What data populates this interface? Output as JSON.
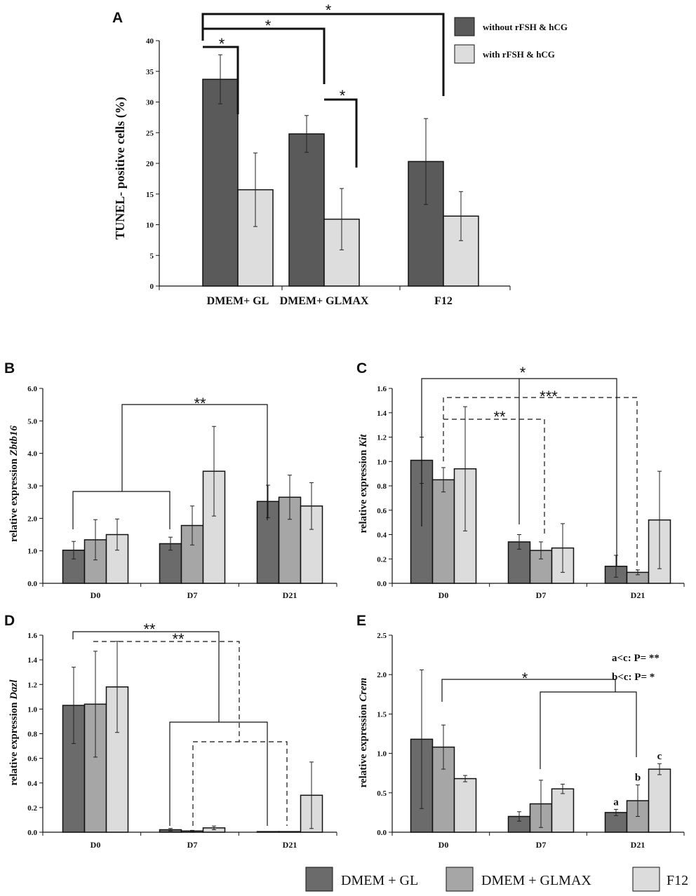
{
  "figure": {
    "legend_bottom": [
      {
        "label": "DMEM + GL",
        "color": "#6b6b6b"
      },
      {
        "label": "DMEM + GLMAX",
        "color": "#a6a6a6"
      },
      {
        "label": "F12",
        "color": "#dcdcdc"
      }
    ]
  },
  "chart_data": [
    {
      "panel": "A",
      "type": "bar",
      "ylabel": "TUNEL- positive cells (%)",
      "categories": [
        "DMEM+ GL",
        "DMEM+ GLMAX",
        "F12"
      ],
      "ylim": [
        0,
        40
      ],
      "yticks": [
        "0",
        "5",
        "10",
        "15",
        "20",
        "25",
        "30",
        "35",
        "40"
      ],
      "series": [
        {
          "name": "without rFSH & hCG",
          "color": "#5a5a5a",
          "values": [
            33.7,
            24.8,
            20.3
          ],
          "errors": [
            4.0,
            3.0,
            7.0
          ]
        },
        {
          "name": "with rFSH & hCG",
          "color": "#dddddd",
          "values": [
            15.7,
            10.9,
            11.4
          ],
          "errors": [
            6.0,
            5.0,
            4.0
          ]
        }
      ],
      "significance": [
        {
          "label": "*",
          "from": "DMEM+ GL/without",
          "to": "DMEM+ GL/with"
        },
        {
          "label": "*",
          "from": "DMEM+ GL/without",
          "to": "DMEM+ GLMAX/without"
        },
        {
          "label": "*",
          "from": "DMEM+ GLMAX/without",
          "to": "DMEM+ GLMAX/with"
        },
        {
          "label": "*",
          "from": "DMEM+ GL/without",
          "to": "F12/without"
        }
      ]
    },
    {
      "panel": "B",
      "type": "bar",
      "ylabel": "relative expression Zbtb16",
      "ylabel_plain": "relative expression ",
      "ylabel_italic": "Zbtb16",
      "categories": [
        "D0",
        "D7",
        "D21"
      ],
      "ylim": [
        0,
        6
      ],
      "yticks": [
        "0.0",
        "1.0",
        "2.0",
        "3.0",
        "4.0",
        "5.0",
        "6.0"
      ],
      "series": [
        {
          "name": "DMEM + GL",
          "values": [
            1.02,
            1.22,
            2.52
          ],
          "errors": [
            0.27,
            0.2,
            0.5
          ]
        },
        {
          "name": "DMEM + GLMAX",
          "values": [
            1.34,
            1.78,
            2.65
          ],
          "errors": [
            0.62,
            0.6,
            0.68
          ]
        },
        {
          "name": "F12",
          "values": [
            1.5,
            3.45,
            2.38
          ],
          "errors": [
            0.48,
            1.38,
            0.72
          ]
        }
      ],
      "significance": [
        {
          "label": "**"
        }
      ]
    },
    {
      "panel": "C",
      "type": "bar",
      "ylabel": "relative expression Kit",
      "ylabel_plain": "relative expression ",
      "ylabel_italic": "Kit",
      "categories": [
        "D0",
        "D7",
        "D21"
      ],
      "ylim": [
        0,
        1.6
      ],
      "yticks": [
        "0.0",
        "0.2",
        "0.4",
        "0.6",
        "0.8",
        "1.0",
        "1.2",
        "1.4",
        "1.6"
      ],
      "series": [
        {
          "name": "DMEM + GL",
          "values": [
            1.01,
            0.34,
            0.14
          ],
          "errors": [
            0.19,
            0.06,
            0.09
          ]
        },
        {
          "name": "DMEM + GLMAX",
          "values": [
            0.85,
            0.27,
            0.09
          ],
          "errors": [
            0.1,
            0.07,
            0.02
          ]
        },
        {
          "name": "F12",
          "values": [
            0.94,
            0.29,
            0.52
          ],
          "errors": [
            0.51,
            0.2,
            0.4
          ]
        }
      ],
      "significance": [
        {
          "label": "*"
        },
        {
          "label": "***"
        },
        {
          "label": "**"
        }
      ]
    },
    {
      "panel": "D",
      "type": "bar",
      "ylabel": "relative expression Dazl",
      "ylabel_plain": "relative expression ",
      "ylabel_italic": "Dazl",
      "categories": [
        "D0",
        "D7",
        "D21"
      ],
      "ylim": [
        0,
        1.6
      ],
      "yticks": [
        "0.0",
        "0.2",
        "0.4",
        "0.6",
        "0.8",
        "1.0",
        "1.2",
        "1.4",
        "1.6"
      ],
      "series": [
        {
          "name": "DMEM + GL",
          "values": [
            1.03,
            0.02,
            0.005
          ],
          "errors": [
            0.31,
            0.01,
            0.0
          ]
        },
        {
          "name": "DMEM + GLMAX",
          "values": [
            1.04,
            0.01,
            0.005
          ],
          "errors": [
            0.43,
            0.005,
            0.0
          ]
        },
        {
          "name": "F12",
          "values": [
            1.18,
            0.035,
            0.3
          ],
          "errors": [
            0.37,
            0.015,
            0.27
          ]
        }
      ],
      "significance": [
        {
          "label": "**"
        },
        {
          "label": "**"
        }
      ]
    },
    {
      "panel": "E",
      "type": "bar",
      "ylabel": "relative expression Crem",
      "ylabel_plain": "relative expression ",
      "ylabel_italic": "Crem",
      "categories": [
        "D0",
        "D7",
        "D21"
      ],
      "ylim": [
        0,
        2.5
      ],
      "yticks": [
        "0.0",
        "0.5",
        "1.0",
        "1.5",
        "2.0",
        "2.5"
      ],
      "series": [
        {
          "name": "DMEM + GL",
          "values": [
            1.18,
            0.2,
            0.25
          ],
          "errors": [
            0.88,
            0.06,
            0.04
          ]
        },
        {
          "name": "DMEM + GLMAX",
          "values": [
            1.08,
            0.36,
            0.4
          ],
          "errors": [
            0.28,
            0.3,
            0.2
          ]
        },
        {
          "name": "F12",
          "values": [
            0.68,
            0.55,
            0.8
          ],
          "errors": [
            0.04,
            0.06,
            0.07
          ]
        }
      ],
      "bar_labels": {
        "D21": [
          "a",
          "b",
          "c"
        ]
      },
      "notes": [
        "a<c: P= **",
        "b<c: P= *"
      ],
      "significance": [
        {
          "label": "*"
        }
      ]
    }
  ]
}
